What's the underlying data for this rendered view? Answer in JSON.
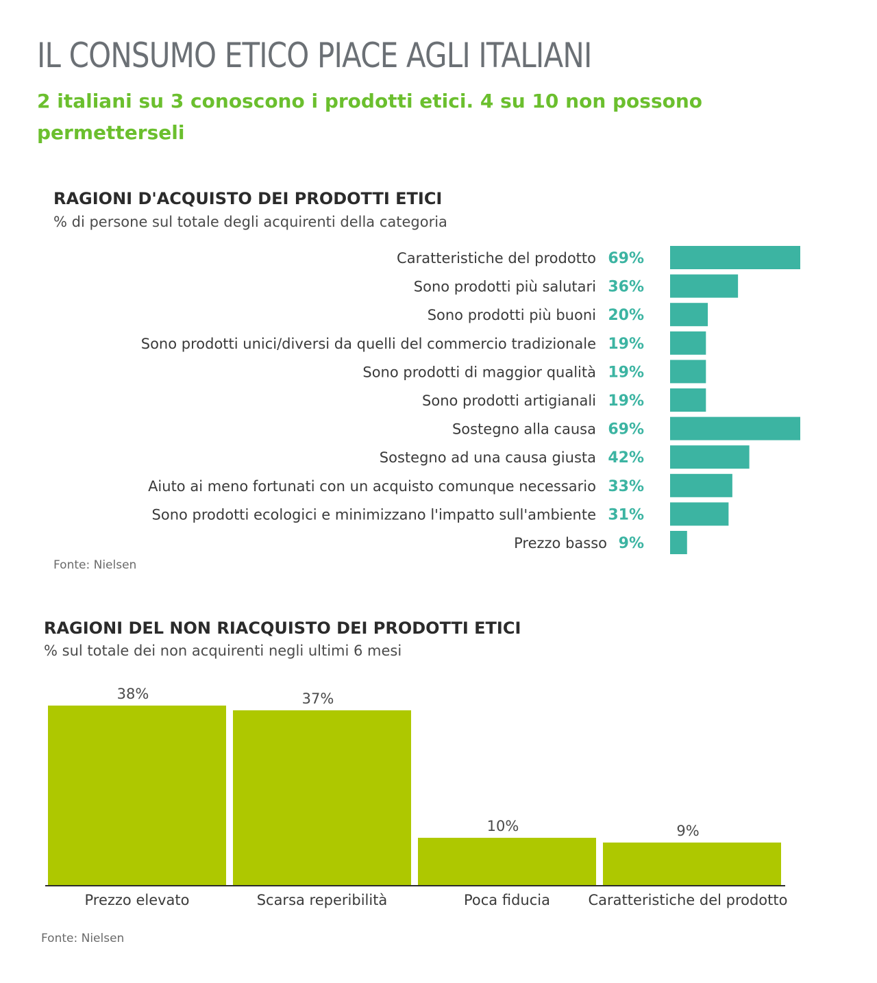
{
  "page": {
    "title": "IL CONSUMO ETICO PIACE AGLI ITALIANI",
    "subtitle": "2 italiani su 3 conoscono i prodotti etici. 4 su 10 non possono permetterseli"
  },
  "colors": {
    "title": "#6b7075",
    "subtitle": "#6bbf2e",
    "teal": "#3cb4a2",
    "lime": "#aec800"
  },
  "section1": {
    "heading": "RAGIONI D'ACQUISTO DEI PRODOTTI ETICI",
    "subheading": "% di persone sul totale degli acquirenti della categoria",
    "source": "Fonte: Nielsen"
  },
  "section2": {
    "heading": "RAGIONI DEL NON RIACQUISTO DEI PRODOTTI ETICI",
    "subheading": "% sul totale dei non acquirenti negli ultimi 6 mesi",
    "source": "Fonte: Nielsen"
  },
  "chart_data": [
    {
      "type": "bar",
      "orientation": "horizontal",
      "title": "RAGIONI D'ACQUISTO DEI PRODOTTI ETICI",
      "categories": [
        "Caratteristiche del prodotto",
        "Sono prodotti più salutari",
        "Sono prodotti più buoni",
        "Sono prodotti unici/diversi da quelli del commercio tradizionale",
        "Sono prodotti di maggior qualità",
        "Sono prodotti artigianali",
        "Sostegno alla causa",
        "Sostegno ad una causa giusta",
        "Aiuto ai meno fortunati con un acquisto comunque necessario",
        "Sono prodotti ecologici e minimizzano l'impatto sull'ambiente",
        "Prezzo basso"
      ],
      "values": [
        69,
        36,
        20,
        19,
        19,
        19,
        69,
        42,
        33,
        31,
        9
      ],
      "value_labels": [
        "69%",
        "36%",
        "20%",
        "19%",
        "19%",
        "19%",
        "69%",
        "42%",
        "33%",
        "31%",
        "9%"
      ],
      "unit": "%",
      "xlim": [
        0,
        69
      ]
    },
    {
      "type": "bar",
      "orientation": "vertical",
      "title": "RAGIONI DEL NON RIACQUISTO DEI PRODOTTI ETICI",
      "categories": [
        "Prezzo elevato",
        "Scarsa reperibilità",
        "Poca fiducia",
        "Caratteristiche del prodotto"
      ],
      "values": [
        38,
        37,
        10,
        9
      ],
      "value_labels": [
        "38%",
        "37%",
        "10%",
        "9%"
      ],
      "unit": "%",
      "ylim": [
        0,
        38
      ]
    }
  ]
}
